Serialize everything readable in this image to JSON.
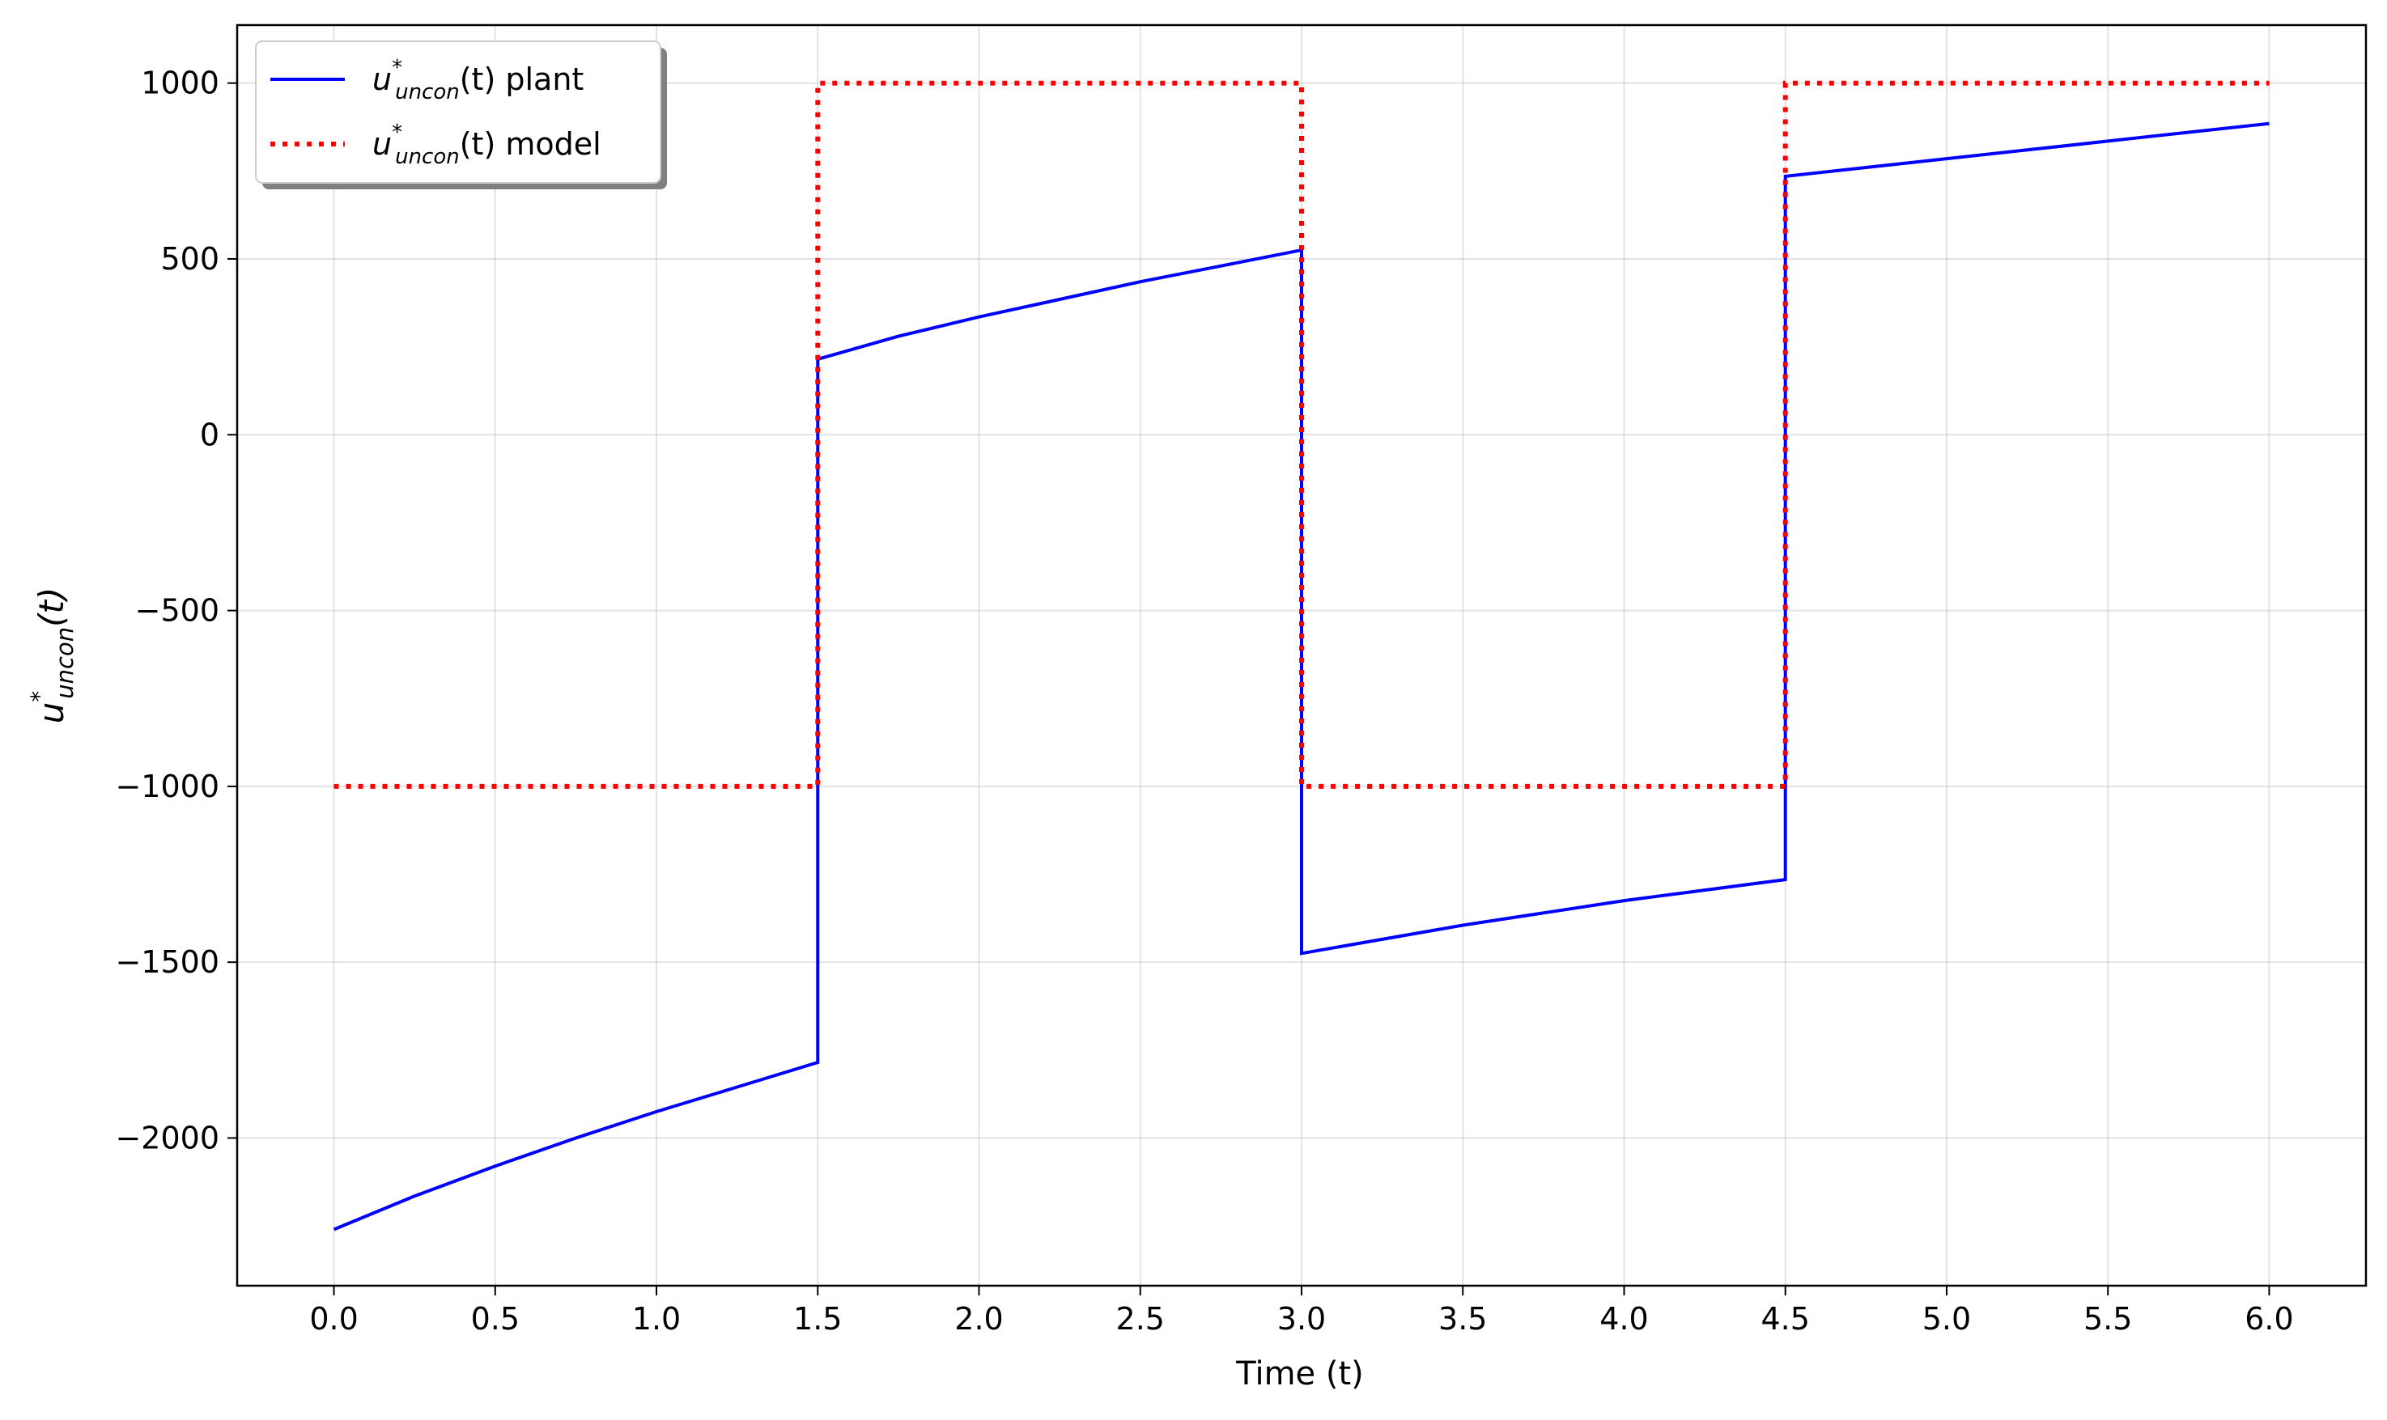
{
  "chart_data": {
    "type": "line",
    "xlabel": "Time (t)",
    "ylabel_base": "u",
    "ylabel_sup": "*",
    "ylabel_sub": "uncon",
    "ylabel_suffix": "(t)",
    "xlim": [
      -0.3,
      6.3
    ],
    "ylim": [
      -2420,
      1165
    ],
    "xticks": [
      0.0,
      0.5,
      1.0,
      1.5,
      2.0,
      2.5,
      3.0,
      3.5,
      4.0,
      4.5,
      5.0,
      5.5,
      6.0
    ],
    "xtick_labels": [
      "0.0",
      "0.5",
      "1.0",
      "1.5",
      "2.0",
      "2.5",
      "3.0",
      "3.5",
      "4.0",
      "4.5",
      "5.0",
      "5.5",
      "6.0"
    ],
    "yticks": [
      1000,
      500,
      0,
      -500,
      -1000,
      -1500,
      -2000
    ],
    "ytick_labels": [
      "1000",
      "500",
      "0",
      "−500",
      "−1000",
      "−1500",
      "−2000"
    ],
    "grid": true,
    "legend_position": "upper-left",
    "series": [
      {
        "name_base": "u",
        "name_sup": "*",
        "name_sub": "uncon",
        "name_suffix": "(t) plant",
        "color": "#0000ff",
        "style": "solid",
        "segments": [
          [
            [
              0.0,
              -2260
            ],
            [
              0.25,
              -2165
            ],
            [
              0.5,
              -2080
            ],
            [
              0.75,
              -2000
            ],
            [
              1.0,
              -1925
            ],
            [
              1.25,
              -1855
            ],
            [
              1.5,
              -1785
            ]
          ],
          [
            [
              1.5,
              215
            ],
            [
              1.75,
              280
            ],
            [
              2.0,
              335
            ],
            [
              2.25,
              385
            ],
            [
              2.5,
              435
            ],
            [
              2.75,
              480
            ],
            [
              3.0,
              525
            ]
          ],
          [
            [
              3.0,
              -1475
            ],
            [
              3.25,
              -1435
            ],
            [
              3.5,
              -1395
            ],
            [
              3.75,
              -1360
            ],
            [
              4.0,
              -1325
            ],
            [
              4.25,
              -1295
            ],
            [
              4.5,
              -1265
            ]
          ],
          [
            [
              4.5,
              735
            ],
            [
              4.75,
              760
            ],
            [
              5.0,
              785
            ],
            [
              5.25,
              810
            ],
            [
              5.5,
              835
            ],
            [
              5.75,
              860
            ],
            [
              6.0,
              885
            ]
          ]
        ]
      },
      {
        "name_base": "u",
        "name_sup": "*",
        "name_sub": "uncon",
        "name_suffix": "(t) model",
        "color": "#ff0000",
        "style": "dotted",
        "segments": [
          [
            [
              0.0,
              -1000
            ],
            [
              1.5,
              -1000
            ]
          ],
          [
            [
              1.5,
              1000
            ],
            [
              3.0,
              1000
            ]
          ],
          [
            [
              3.0,
              -1000
            ],
            [
              4.5,
              -1000
            ]
          ],
          [
            [
              4.5,
              1000
            ],
            [
              6.0,
              1000
            ]
          ]
        ]
      }
    ]
  }
}
